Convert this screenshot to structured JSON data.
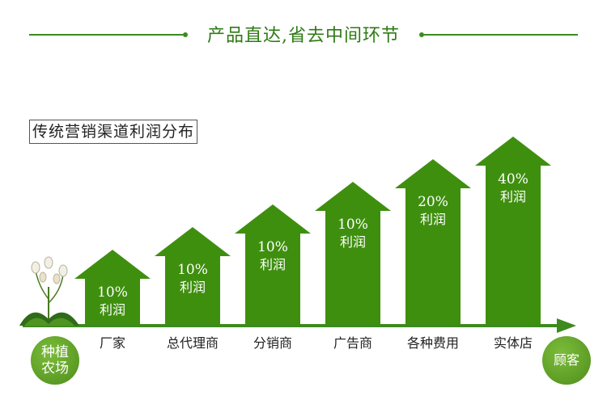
{
  "header": {
    "title": "产品直达,省去中间环节"
  },
  "subtitle": "传统营销渠道利润分布",
  "source_label": "种植农场",
  "source_label_line1": "种植",
  "source_label_line2": "农场",
  "customer_label": "顾客",
  "colors": {
    "arrow_green": "#3f8f0f",
    "axis_green": "#3d8a1e",
    "badge_green": "#6aac2c"
  },
  "chart_data": {
    "type": "bar",
    "categories": [
      "厂家",
      "总代理商",
      "分销商",
      "广告商",
      "各种费用",
      "实体店"
    ],
    "values": [
      10,
      10,
      10,
      10,
      20,
      40
    ],
    "value_labels": [
      "10%",
      "10%",
      "10%",
      "10%",
      "20%",
      "40%"
    ],
    "bar_text": "利润",
    "bar_shape": "up-arrow",
    "step_heights_rank": [
      1,
      2,
      3,
      4,
      5,
      6
    ]
  }
}
